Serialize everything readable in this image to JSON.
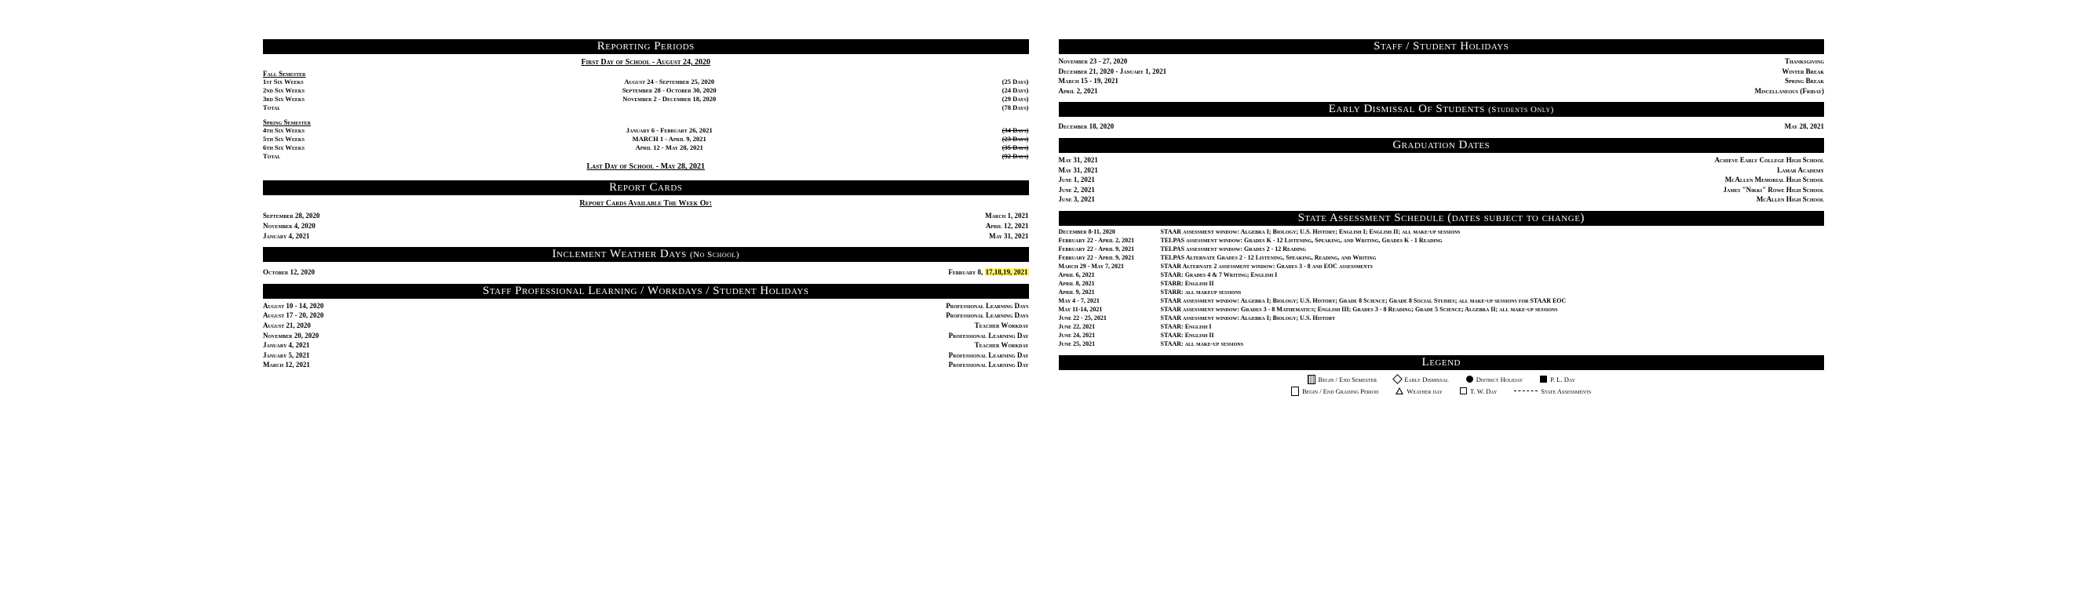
{
  "left": {
    "reporting": {
      "title": "Reporting Periods",
      "first_day": "First Day of School - August 24, 2020",
      "fall_label": "Fall Semester",
      "fall": [
        {
          "lbl": "1st Six Weeks",
          "rng": "August 24 - September 25, 2020",
          "days": "(25 Days)"
        },
        {
          "lbl": "2nd Six Weeks",
          "rng": "September 28 - October 30, 2020",
          "days": "(24 Days)"
        },
        {
          "lbl": "3rd Six Weeks",
          "rng": "November 2 - December 18, 2020",
          "days": "(29 Days)"
        },
        {
          "lbl": "Total",
          "rng": "",
          "days": "(78 Days)"
        }
      ],
      "spring_label": "Spring Semester",
      "spring": [
        {
          "lbl": "4th Six Weeks",
          "rng": "January 6 - February 26, 2021",
          "days": "(34 Days)",
          "strike": true
        },
        {
          "lbl": "5th Six Weeks",
          "rng": "MARCH 1 - April 9, 2021",
          "days": "(23 Days)",
          "strike": true
        },
        {
          "lbl": "6th Six Weeks",
          "rng": "April 12 - May 28, 2021",
          "days": "(35 Days)",
          "strike": true
        },
        {
          "lbl": "Total",
          "rng": "",
          "days": "(92 Days)",
          "strike": true
        }
      ],
      "last_day": "Last Day of School - May 28, 2021"
    },
    "report_cards": {
      "title": "Report Cards",
      "sub": "Report Cards Available The Week Of:",
      "left": [
        "September 28, 2020",
        "November 4, 2020",
        "January 4, 2021"
      ],
      "right": [
        "March 1, 2021",
        "April 12, 2021",
        "May 31, 2021"
      ]
    },
    "weather": {
      "title": "Inclement Weather Days",
      "title_sub": "(No School)",
      "left": "October 12, 2020",
      "right_plain": "February 8,",
      "right_hl": "17,18,19, 2021"
    },
    "staff_dev": {
      "title": "Staff Professional Learning / Workdays / Student Holidays",
      "rows": [
        {
          "d": "August 10 - 14, 2020",
          "t": "Professional Learning Days"
        },
        {
          "d": "August 17 - 20, 2020",
          "t": "Professional Learning Days"
        },
        {
          "d": "August 21, 2020",
          "t": "Teacher Workday"
        },
        {
          "d": "November 20, 2020",
          "t": "Professional Learning Day"
        },
        {
          "d": "January 4, 2021",
          "t": "Teacher Workday"
        },
        {
          "d": "January 5, 2021",
          "t": "Professional Learning Day"
        },
        {
          "d": "March 12, 2021",
          "t": "Professional Learning Day"
        }
      ]
    }
  },
  "right": {
    "holidays": {
      "title": "Staff / Student Holidays",
      "rows": [
        {
          "d": "November 23 - 27, 2020",
          "t": "Thanksgiving"
        },
        {
          "d": "December 21, 2020 - January 1, 2021",
          "t": "Winter Break"
        },
        {
          "d": "March 15 - 19, 2021",
          "t": "Spring Break"
        },
        {
          "d": "April 2, 2021",
          "t": "Miscellaneous (Friday)"
        }
      ]
    },
    "early": {
      "title": "Early Dismissal Of Students",
      "title_sub": "(Students Only)",
      "left": "December 18, 2020",
      "right": "May 28, 2021"
    },
    "grad": {
      "title": "Graduation Dates",
      "rows": [
        {
          "d": "May 31, 2021",
          "t": "Achieve Early College High School"
        },
        {
          "d": "May 31, 2021",
          "t": "Lamar Academy"
        },
        {
          "d": "June 1, 2021",
          "t": "McAllen Memorial High School"
        },
        {
          "d": "June 2, 2021",
          "t": "James \"Nikki\" Rowe High School"
        },
        {
          "d": "June 3, 2021",
          "t": "McAllen High School"
        }
      ]
    },
    "assess": {
      "title": "State Assessment Schedule (dates subject to change)",
      "rows": [
        {
          "d": "December 8-11, 2020",
          "t": "STAAR assessment window:  Algebra I; Biology; U.S. History; English I; English II; all make-up sessions"
        },
        {
          "d": "February 22 - April 2, 2021",
          "t": "TELPAS assessment window: Grades K - 12 Listening, Speaking, and Writing, Grades K - 1 Reading"
        },
        {
          "d": "February 22 - April 9, 2021",
          "t": "TELPAS assessment window: Grades 2 - 12 Reading"
        },
        {
          "d": "February 22 - April 9, 2021",
          "t": "TELPAS Alternate Grades 2 - 12 Listening, Speaking, Reading, and Writing"
        },
        {
          "d": "March 29 - May 7, 2021",
          "t": "STAAR Alternate 2 assessment window: Grades 3 - 8 and EOC assessments"
        },
        {
          "d": "April 6, 2021",
          "t": "STAAR:  Grades 4 & 7 Writing; English I"
        },
        {
          "d": "April 8, 2021",
          "t": "STARR:  English II"
        },
        {
          "d": "April 9, 2021",
          "t": "STARR:  all makeup sessions"
        },
        {
          "d": "May 4 - 7, 2021",
          "t": "STAAR assessment window: Algebra I; Biology; U.S. History; Grade 8 Science; Grade 8 Social Studies; all make-up sessions for STAAR EOC"
        },
        {
          "d": "May 11-14, 2021",
          "t": "STAAR assessment window: Grades 3 - 8 Mathematics; English III; Grades 3 - 8 Reading; Grade 5 Science; Algebra II; all make-up sessions"
        },
        {
          "d": "June 22 - 25, 2021",
          "t": "STAAR assessment window: Algebra I; Biology; U.S. History"
        },
        {
          "d": "June 22, 2021",
          "t": "STAAR:  English I"
        },
        {
          "d": "June 24, 2021",
          "t": "STAAR:  English II"
        },
        {
          "d": "June 25, 2021",
          "t": "STAAR:  all make-up sessions"
        }
      ]
    },
    "legend": {
      "title": "Legend",
      "row1": [
        {
          "icon": "shade",
          "t": "Begin / End Semester"
        },
        {
          "icon": "diamond",
          "t": "Early Dismissal"
        },
        {
          "icon": "circle",
          "t": "District Holiday"
        },
        {
          "icon": "sq",
          "t": "P. L. Day"
        }
      ],
      "row2": [
        {
          "icon": "box",
          "t": "Begin / End Grading Period"
        },
        {
          "icon": "tri",
          "t": "Weather day"
        },
        {
          "icon": "open",
          "t": "T. W. Day"
        },
        {
          "icon": "dash",
          "t": "State Assessments"
        }
      ]
    }
  }
}
